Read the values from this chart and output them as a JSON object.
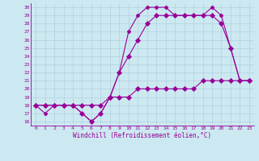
{
  "xlabel": "Windchill (Refroidissement éolien,°C)",
  "xlim": [
    -0.5,
    23.5
  ],
  "ylim": [
    15.5,
    30.5
  ],
  "xticks": [
    0,
    1,
    2,
    3,
    4,
    5,
    6,
    7,
    8,
    9,
    10,
    11,
    12,
    13,
    14,
    15,
    16,
    17,
    18,
    19,
    20,
    21,
    22,
    23
  ],
  "yticks": [
    16,
    17,
    18,
    19,
    20,
    21,
    22,
    23,
    24,
    25,
    26,
    27,
    28,
    29,
    30
  ],
  "background_color": "#cce8f0",
  "line_color": "#990099",
  "grid_color": "#aaccdd",
  "series": [
    {
      "x": [
        0,
        1,
        2,
        3,
        4,
        5,
        6,
        7,
        8,
        9,
        10,
        11,
        12,
        13,
        14,
        15,
        16,
        17,
        18,
        19,
        20,
        21,
        22,
        23
      ],
      "y": [
        18,
        17,
        18,
        18,
        18,
        17,
        16,
        17,
        19,
        22,
        27,
        29,
        30,
        30,
        30,
        29,
        29,
        29,
        29,
        30,
        29,
        25,
        21,
        21
      ]
    },
    {
      "x": [
        0,
        1,
        2,
        3,
        4,
        5,
        6,
        7,
        8,
        9,
        10,
        11,
        12,
        13,
        14,
        15,
        16,
        17,
        18,
        19,
        20,
        21,
        22,
        23
      ],
      "y": [
        18,
        18,
        18,
        18,
        18,
        17,
        16,
        17,
        19,
        22,
        24,
        26,
        28,
        29,
        29,
        29,
        29,
        29,
        29,
        29,
        28,
        25,
        21,
        21
      ]
    },
    {
      "x": [
        0,
        1,
        2,
        3,
        4,
        5,
        6,
        7,
        8,
        9,
        10,
        11,
        12,
        13,
        14,
        15,
        16,
        17,
        18,
        19,
        20,
        21,
        22,
        23
      ],
      "y": [
        18,
        18,
        18,
        18,
        18,
        18,
        18,
        18,
        19,
        19,
        19,
        20,
        20,
        20,
        20,
        20,
        20,
        20,
        21,
        21,
        21,
        21,
        21,
        21
      ]
    }
  ],
  "markers": [
    "P",
    "D",
    "D"
  ],
  "markersizes": [
    3,
    3,
    3
  ]
}
